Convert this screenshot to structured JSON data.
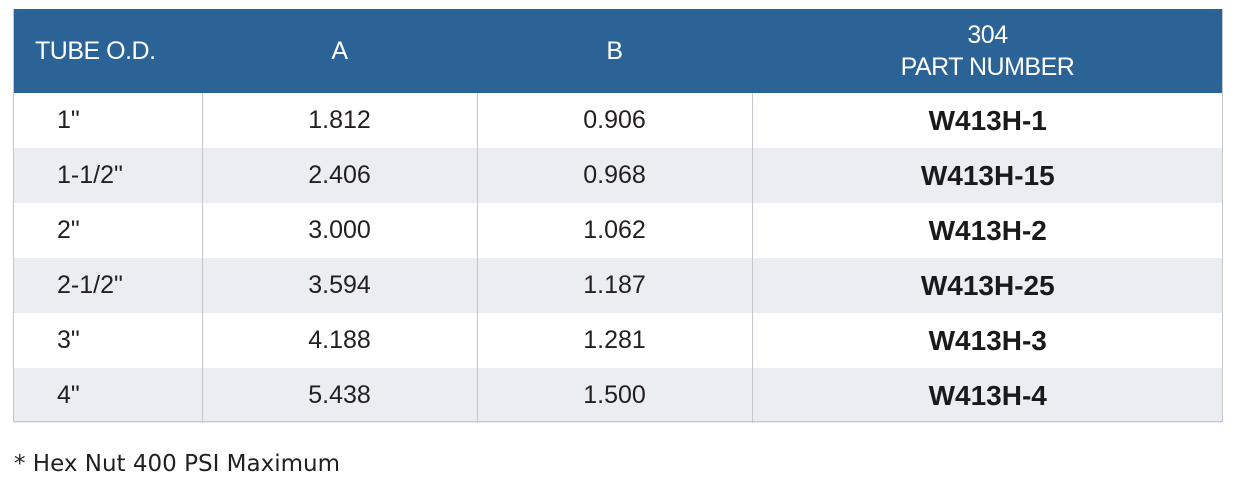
{
  "table": {
    "headers": {
      "tube_od": "TUBE O.D.",
      "a": "A",
      "b": "B",
      "part_number_line1": "304",
      "part_number_line2": "PART NUMBER"
    },
    "rows": [
      {
        "tube_od": "1\"",
        "a": "1.812",
        "b": "0.906",
        "part": "W413H-1"
      },
      {
        "tube_od": "1-1/2\"",
        "a": "2.406",
        "b": "0.968",
        "part": "W413H-15"
      },
      {
        "tube_od": "2\"",
        "a": "3.000",
        "b": "1.062",
        "part": "W413H-2"
      },
      {
        "tube_od": "2-1/2\"",
        "a": "3.594",
        "b": "1.187",
        "part": "W413H-25"
      },
      {
        "tube_od": "3\"",
        "a": "4.188",
        "b": "1.281",
        "part": "W413H-3"
      },
      {
        "tube_od": "4\"",
        "a": "5.438",
        "b": "1.500",
        "part": "W413H-4"
      }
    ],
    "colors": {
      "header_bg": "#2b6397",
      "header_text": "#ffffff",
      "stripe_bg": "#eaedf2"
    }
  },
  "footnote": "* Hex Nut 400 PSI Maximum"
}
